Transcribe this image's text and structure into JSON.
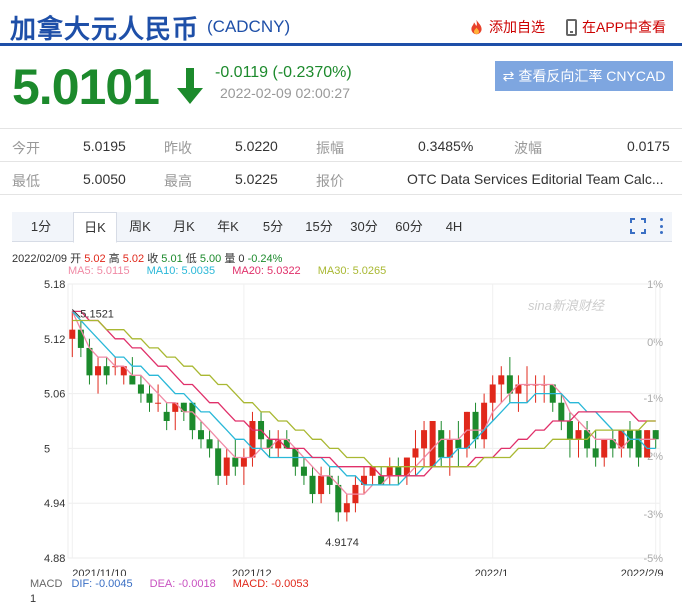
{
  "header": {
    "title": "加拿大元人民币",
    "code": "(CADCNY)",
    "watch_label": "添加自选",
    "app_label": "在APP中查看"
  },
  "quote": {
    "price": "5.0101",
    "change": "-0.0119 (-0.2370%)",
    "time": "2022-02-09 02:00:27",
    "reverse_label": "查看反向汇率 CNYCAD",
    "down_color": "#1c8a2c",
    "up_color": "#e0281b"
  },
  "stats": [
    [
      {
        "l": "今开",
        "v": "5.0195"
      },
      {
        "l": "昨收",
        "v": "5.0220"
      },
      {
        "l": "振幅",
        "v": "0.3485%"
      },
      {
        "l": "波幅",
        "v": "0.0175"
      }
    ],
    [
      {
        "l": "最低",
        "v": "5.0050"
      },
      {
        "l": "最高",
        "v": "5.0225"
      },
      {
        "l": "报价",
        "v": "OTC Data Services Editorial Team Calc..."
      }
    ]
  ],
  "tabs": [
    "1分",
    "日K",
    "周K",
    "月K",
    "年K",
    "5分",
    "15分",
    "30分",
    "60分",
    "4H"
  ],
  "active_tab": "日K",
  "bar_info": {
    "date": "2022/02/09",
    "open_label": "开",
    "open": "5.02",
    "high_label": "高",
    "high": "5.02",
    "close_label": "收",
    "close": "5.01",
    "low_label": "低",
    "low": "5.00",
    "vol_label": "量",
    "vol": "0",
    "pct": "-0.24%"
  },
  "ma_legend": {
    "ma5": "MA5: 5.0115",
    "ma10": "MA10: 5.0035",
    "ma20": "MA20: 5.0322",
    "ma30": "MA30: 5.0265"
  },
  "macd_legend": {
    "title": "MACD",
    "dif": "DIF: -0.0045",
    "dea": "DEA: -0.0018",
    "macd": "MACD: -0.0053",
    "axis_top": "1"
  },
  "watermark": "sina新浪财经",
  "chart_data": {
    "type": "candlestick",
    "y_ticks": [
      "5.18",
      "5.12",
      "5.06",
      "5",
      "4.94",
      "4.88"
    ],
    "pct_ticks": [
      "1%",
      "0%",
      "-1%",
      "-2%",
      "-3%",
      "-5%"
    ],
    "x_ticks": [
      "2021/11/10",
      "2021/12",
      "2022/1",
      "2022/2/9"
    ],
    "ylim": [
      4.88,
      5.18
    ],
    "annotations": {
      "high": "5.1521",
      "low": "4.9174"
    },
    "ohlc": [
      [
        5.12,
        5.15,
        5.1,
        5.13
      ],
      [
        5.13,
        5.14,
        5.1,
        5.11
      ],
      [
        5.11,
        5.12,
        5.07,
        5.08
      ],
      [
        5.08,
        5.1,
        5.06,
        5.09
      ],
      [
        5.09,
        5.1,
        5.07,
        5.08
      ],
      [
        5.09,
        5.1,
        5.08,
        5.09
      ],
      [
        5.08,
        5.09,
        5.07,
        5.09
      ],
      [
        5.08,
        5.1,
        5.07,
        5.07
      ],
      [
        5.07,
        5.08,
        5.05,
        5.06
      ],
      [
        5.06,
        5.07,
        5.04,
        5.05
      ],
      [
        5.05,
        5.07,
        5.04,
        5.05
      ],
      [
        5.04,
        5.05,
        5.02,
        5.03
      ],
      [
        5.04,
        5.05,
        5.02,
        5.05
      ],
      [
        5.05,
        5.05,
        5.03,
        5.04
      ],
      [
        5.05,
        5.05,
        5.01,
        5.02
      ],
      [
        5.02,
        5.03,
        5.0,
        5.01
      ],
      [
        5.01,
        5.02,
        4.99,
        5.0
      ],
      [
        5.0,
        5.01,
        4.96,
        4.97
      ],
      [
        4.97,
        5.0,
        4.96,
        4.99
      ],
      [
        4.99,
        5.01,
        4.97,
        4.98
      ],
      [
        4.98,
        5.0,
        4.96,
        4.99
      ],
      [
        4.99,
        5.04,
        4.98,
        5.03
      ],
      [
        5.03,
        5.04,
        5.0,
        5.01
      ],
      [
        5.01,
        5.02,
        4.99,
        5.0
      ],
      [
        5.0,
        5.02,
        4.99,
        5.01
      ],
      [
        5.01,
        5.02,
        5.0,
        5.0
      ],
      [
        5.0,
        5.0,
        4.97,
        4.98
      ],
      [
        4.98,
        4.99,
        4.96,
        4.97
      ],
      [
        4.97,
        4.98,
        4.94,
        4.95
      ],
      [
        4.95,
        4.98,
        4.94,
        4.97
      ],
      [
        4.97,
        4.98,
        4.95,
        4.96
      ],
      [
        4.96,
        4.97,
        4.92,
        4.93
      ],
      [
        4.93,
        4.95,
        4.92,
        4.94
      ],
      [
        4.94,
        4.97,
        4.93,
        4.96
      ],
      [
        4.96,
        4.98,
        4.95,
        4.97
      ],
      [
        4.97,
        4.98,
        4.96,
        4.98
      ],
      [
        4.97,
        4.98,
        4.96,
        4.96
      ],
      [
        4.97,
        4.99,
        4.96,
        4.98
      ],
      [
        4.98,
        4.99,
        4.96,
        4.97
      ],
      [
        4.97,
        4.99,
        4.96,
        4.99
      ],
      [
        4.99,
        5.02,
        4.97,
        5.0
      ],
      [
        5.0,
        5.03,
        4.98,
        5.02
      ],
      [
        4.98,
        5.03,
        4.98,
        5.03
      ],
      [
        5.02,
        5.03,
        4.98,
        4.99
      ],
      [
        4.99,
        5.02,
        4.97,
        5.01
      ],
      [
        5.01,
        5.03,
        4.98,
        5.0
      ],
      [
        5.0,
        5.04,
        4.99,
        5.04
      ],
      [
        5.04,
        5.05,
        5.0,
        5.01
      ],
      [
        5.01,
        5.06,
        5.0,
        5.05
      ],
      [
        5.05,
        5.08,
        5.03,
        5.07
      ],
      [
        5.07,
        5.09,
        5.05,
        5.08
      ],
      [
        5.08,
        5.1,
        5.05,
        5.06
      ],
      [
        5.06,
        5.08,
        5.04,
        5.07
      ],
      [
        5.07,
        5.09,
        5.05,
        5.07
      ],
      [
        5.07,
        5.08,
        5.05,
        5.07
      ],
      [
        5.07,
        5.08,
        5.05,
        5.07
      ],
      [
        5.07,
        5.07,
        5.04,
        5.05
      ],
      [
        5.05,
        5.06,
        5.02,
        5.03
      ],
      [
        5.03,
        5.04,
        4.99,
        5.01
      ],
      [
        5.01,
        5.03,
        4.99,
        5.02
      ],
      [
        5.02,
        5.03,
        4.99,
        5.0
      ],
      [
        5.0,
        5.02,
        4.98,
        4.99
      ],
      [
        4.99,
        5.01,
        4.98,
        5.01
      ],
      [
        5.01,
        5.02,
        4.99,
        5.0
      ],
      [
        5.0,
        5.02,
        4.99,
        5.02
      ],
      [
        5.02,
        5.03,
        4.99,
        5.0
      ],
      [
        5.02,
        5.02,
        4.98,
        4.99
      ],
      [
        4.99,
        5.02,
        4.99,
        5.02
      ],
      [
        5.02,
        5.02,
        5.0,
        5.01
      ]
    ],
    "series": [
      {
        "name": "MA5",
        "color": "#f08aa5",
        "values": [
          5.15,
          5.13,
          5.11,
          5.1,
          5.1,
          5.09,
          5.09,
          5.08,
          5.08,
          5.07,
          5.06,
          5.05,
          5.05,
          5.04,
          5.04,
          5.03,
          5.02,
          5.01,
          5.0,
          4.99,
          4.99,
          4.99,
          5.0,
          5.0,
          5.01,
          5.01,
          5.0,
          4.99,
          4.98,
          4.97,
          4.97,
          4.96,
          4.95,
          4.95,
          4.95,
          4.96,
          4.96,
          4.97,
          4.97,
          4.97,
          4.98,
          4.99,
          5.0,
          5.01,
          5.01,
          5.01,
          5.02,
          5.02,
          5.02,
          5.04,
          5.05,
          5.06,
          5.07,
          5.07,
          5.07,
          5.07,
          5.07,
          5.06,
          5.04,
          5.03,
          5.02,
          5.01,
          5.01,
          5.01,
          5.0,
          5.01,
          5.01,
          5.01,
          5.01
        ]
      },
      {
        "name": "MA10",
        "color": "#2ab8d8",
        "values": [
          5.15,
          5.14,
          5.13,
          5.12,
          5.11,
          5.1,
          5.1,
          5.09,
          5.09,
          5.08,
          5.08,
          5.07,
          5.06,
          5.06,
          5.05,
          5.04,
          5.04,
          5.03,
          5.02,
          5.01,
          5.01,
          5.0,
          5.0,
          4.99,
          4.99,
          4.99,
          4.99,
          4.99,
          4.99,
          4.99,
          4.98,
          4.98,
          4.97,
          4.97,
          4.96,
          4.96,
          4.96,
          4.96,
          4.96,
          4.97,
          4.97,
          4.98,
          4.98,
          4.99,
          4.99,
          5.0,
          5.0,
          5.01,
          5.02,
          5.03,
          5.04,
          5.05,
          5.05,
          5.05,
          5.06,
          5.06,
          5.06,
          5.06,
          5.05,
          5.05,
          5.04,
          5.04,
          5.03,
          5.02,
          5.02,
          5.01,
          5.01,
          5.0,
          5.0
        ]
      },
      {
        "name": "MA20",
        "color": "#e0306a",
        "values": [
          5.15,
          5.15,
          5.14,
          5.14,
          5.13,
          5.12,
          5.12,
          5.11,
          5.11,
          5.1,
          5.09,
          5.09,
          5.08,
          5.07,
          5.07,
          5.06,
          5.05,
          5.05,
          5.04,
          5.03,
          5.03,
          5.02,
          5.02,
          5.01,
          5.01,
          5.0,
          5.0,
          5.0,
          4.99,
          4.99,
          4.99,
          4.98,
          4.98,
          4.98,
          4.98,
          4.98,
          4.97,
          4.97,
          4.97,
          4.97,
          4.97,
          4.97,
          4.98,
          4.98,
          4.98,
          4.98,
          4.98,
          4.99,
          4.99,
          4.99,
          5.0,
          5.0,
          5.01,
          5.01,
          5.02,
          5.02,
          5.03,
          5.03,
          5.03,
          5.04,
          5.04,
          5.04,
          5.04,
          5.04,
          5.04,
          5.04,
          5.03,
          5.03,
          5.03
        ]
      },
      {
        "name": "MA30",
        "color": "#a9b832",
        "values": [
          5.14,
          5.14,
          5.14,
          5.14,
          5.13,
          5.13,
          5.13,
          5.12,
          5.12,
          5.11,
          5.11,
          5.1,
          5.1,
          5.09,
          5.09,
          5.08,
          5.08,
          5.07,
          5.07,
          5.06,
          5.05,
          5.05,
          5.04,
          5.04,
          5.03,
          5.03,
          5.02,
          5.02,
          5.01,
          5.01,
          5.0,
          5.0,
          4.99,
          4.99,
          4.99,
          4.98,
          4.98,
          4.98,
          4.98,
          4.98,
          4.98,
          4.98,
          4.98,
          4.98,
          4.98,
          4.98,
          4.98,
          4.98,
          4.99,
          4.99,
          4.99,
          4.99,
          5.0,
          5.0,
          5.0,
          5.0,
          5.01,
          5.01,
          5.01,
          5.01,
          5.01,
          5.02,
          5.02,
          5.02,
          5.02,
          5.02,
          5.02,
          5.03,
          5.03
        ]
      }
    ]
  }
}
